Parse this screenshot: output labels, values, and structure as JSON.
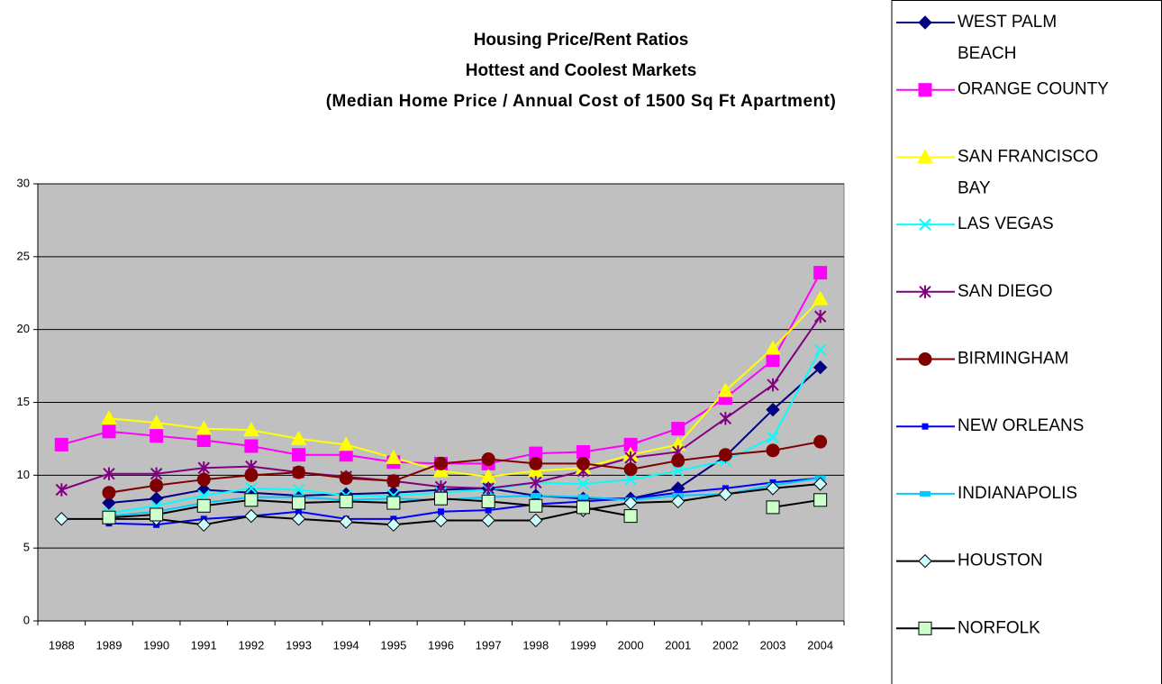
{
  "chart_data": {
    "type": "line",
    "title": [
      "Housing Price/Rent Ratios",
      "Hottest and Coolest Markets",
      "(Median Home Price / Annual Cost of 1500 Sq Ft Apartment)"
    ],
    "categories": [
      "1988",
      "1989",
      "1990",
      "1991",
      "1992",
      "1993",
      "1994",
      "1995",
      "1996",
      "1997",
      "1998",
      "1999",
      "2000",
      "2001",
      "2002",
      "2003",
      "2004"
    ],
    "ylim": [
      0,
      30
    ],
    "yticks": [
      0,
      5,
      10,
      15,
      20,
      25,
      30
    ],
    "grid": true,
    "legend": "right",
    "series": [
      {
        "name": "WEST PALM BEACH",
        "color": "#000080",
        "marker": "diamond",
        "marker_fill": "#000080",
        "values": [
          null,
          8.1,
          8.4,
          9.0,
          8.8,
          8.6,
          8.7,
          8.8,
          9.0,
          9.1,
          8.6,
          8.4,
          8.4,
          9.1,
          11.3,
          14.5,
          17.4
        ]
      },
      {
        "name": "ORANGE COUNTY",
        "color": "#FF00FF",
        "marker": "square",
        "marker_fill": "#FF00FF",
        "values": [
          12.1,
          13.0,
          12.7,
          12.4,
          12.0,
          11.4,
          11.4,
          10.9,
          10.8,
          10.8,
          11.5,
          11.6,
          12.1,
          13.2,
          15.3,
          17.9,
          23.9
        ]
      },
      {
        "name": "SAN FRANCISCO BAY",
        "color": "#FFFF00",
        "marker": "triangle",
        "marker_fill": "#FFFF00",
        "values": [
          null,
          13.9,
          13.6,
          13.2,
          13.1,
          12.5,
          12.1,
          11.2,
          10.3,
          9.9,
          10.3,
          10.5,
          11.4,
          12.1,
          15.8,
          18.7,
          22.1
        ]
      },
      {
        "name": "LAS VEGAS",
        "color": "#00FFFF",
        "marker": "x",
        "marker_fill": "#00FFFF",
        "values": [
          null,
          7.4,
          7.9,
          8.6,
          9.1,
          9.0,
          8.6,
          8.6,
          8.8,
          9.0,
          9.5,
          9.4,
          9.7,
          10.3,
          11.0,
          12.6,
          18.6
        ]
      },
      {
        "name": "SAN DIEGO",
        "color": "#800080",
        "marker": "star",
        "marker_fill": "#800080",
        "values": [
          9.0,
          10.1,
          10.1,
          10.5,
          10.6,
          10.2,
          9.9,
          9.6,
          9.2,
          9.1,
          9.5,
          10.3,
          11.2,
          11.6,
          13.9,
          16.2,
          20.9
        ]
      },
      {
        "name": "BIRMINGHAM",
        "color": "#800000",
        "marker": "circle",
        "marker_fill": "#800000",
        "values": [
          null,
          8.8,
          9.3,
          9.7,
          10.0,
          10.2,
          9.8,
          9.6,
          10.8,
          11.1,
          10.8,
          10.8,
          10.4,
          11.0,
          11.4,
          11.7,
          12.3
        ]
      },
      {
        "name": "NEW ORLEANS",
        "color": "#0000FF",
        "marker": "smallsquare",
        "marker_fill": "#0000FF",
        "values": [
          null,
          6.7,
          6.6,
          7.0,
          7.2,
          7.5,
          7.0,
          7.0,
          7.5,
          7.6,
          8.0,
          8.2,
          8.4,
          8.8,
          9.1,
          9.5,
          9.8
        ]
      },
      {
        "name": "INDIANAPOLIS",
        "color": "#00CCFF",
        "marker": "dash",
        "marker_fill": "#00CCFF",
        "values": [
          null,
          7.2,
          7.5,
          8.1,
          8.5,
          8.5,
          8.3,
          8.4,
          8.3,
          8.5,
          8.6,
          8.5,
          8.3,
          8.6,
          8.7,
          9.3,
          9.8
        ]
      },
      {
        "name": "HOUSTON",
        "color": "#000000",
        "marker": "diamond",
        "marker_fill": "#CCFFFF",
        "values": [
          7.0,
          7.0,
          7.0,
          6.6,
          7.2,
          7.0,
          6.8,
          6.6,
          6.9,
          6.9,
          6.9,
          7.6,
          8.1,
          8.2,
          8.7,
          9.1,
          9.4
        ]
      },
      {
        "name": "NORFOLK",
        "color": "#000000",
        "marker": "square",
        "marker_fill": "#CCFFCC",
        "values": [
          null,
          7.1,
          7.3,
          7.9,
          8.3,
          8.1,
          8.2,
          8.1,
          8.4,
          8.2,
          7.9,
          7.8,
          7.2,
          null,
          null,
          7.8,
          8.3
        ]
      }
    ]
  }
}
